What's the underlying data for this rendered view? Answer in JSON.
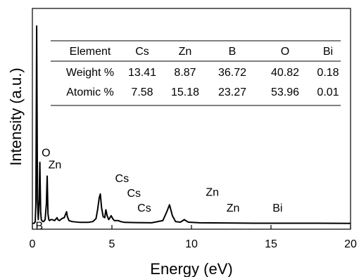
{
  "chart_data": {
    "type": "line",
    "xlabel": "Energy (eV)",
    "ylabel": "Intensity (a.u.)",
    "xlim": [
      0,
      20
    ],
    "x_ticks": [
      "0",
      "5",
      "10",
      "15",
      "20"
    ],
    "grid": false,
    "legend": "none",
    "line_color": "#000000",
    "series": [
      {
        "x": [
          0.0,
          0.12,
          0.18,
          0.22,
          0.27,
          0.32,
          0.37,
          0.42,
          0.47,
          0.52,
          0.56,
          0.62,
          0.7,
          0.8,
          0.88,
          0.93,
          0.98,
          1.03,
          1.08,
          1.15,
          1.25,
          1.4,
          1.5,
          1.55,
          1.6,
          1.7,
          1.85,
          2.0,
          2.1,
          2.15,
          2.2,
          2.3,
          2.5,
          3.0,
          3.5,
          3.8,
          4.0,
          4.1,
          4.2,
          4.27,
          4.35,
          4.45,
          4.55,
          4.62,
          4.7,
          4.8,
          4.88,
          4.95,
          5.05,
          5.15,
          5.3,
          5.4,
          5.55,
          5.8,
          6.5,
          7.5,
          8.2,
          8.45,
          8.62,
          8.8,
          9.0,
          9.3,
          9.55,
          9.8,
          10.5,
          12.0,
          14.0,
          16.0,
          18.0,
          20.0
        ],
        "y": [
          0,
          0.2,
          1,
          10,
          100,
          12,
          2,
          10,
          31,
          6,
          2,
          1.2,
          1,
          2,
          10,
          24,
          5,
          2,
          1.5,
          2,
          2,
          1.5,
          2.5,
          3,
          2,
          1.5,
          2.5,
          3,
          5,
          6,
          3.5,
          1.5,
          1,
          0.6,
          0.6,
          1,
          2.5,
          7,
          13,
          15,
          8,
          3.5,
          3,
          7,
          4,
          2,
          3,
          4,
          2.5,
          1.5,
          1.5,
          1.5,
          1,
          0.6,
          0.5,
          0.4,
          1.5,
          6,
          9.5,
          4,
          1,
          0.7,
          2,
          0.7,
          0.4,
          0.3,
          0.2,
          0.2,
          0.2,
          0.1
        ]
      }
    ],
    "annotations": [
      {
        "text": "O",
        "x": 0.58,
        "y": 34
      },
      {
        "text": "Zn",
        "x": 1.0,
        "y": 28
      },
      {
        "text": "Cs",
        "x": 5.2,
        "y": 21
      },
      {
        "text": "Cs",
        "x": 5.95,
        "y": 13.5
      },
      {
        "text": "Cs",
        "x": 6.6,
        "y": 6
      },
      {
        "text": "Zn",
        "x": 10.9,
        "y": 14
      },
      {
        "text": "Zn",
        "x": 12.2,
        "y": 6
      },
      {
        "text": "Bi",
        "x": 15.1,
        "y": 6
      },
      {
        "text": "B",
        "x": 0.2,
        "y": -3
      }
    ],
    "table": {
      "headers": [
        "Element",
        "Cs",
        "Zn",
        "B",
        "O",
        "Bi"
      ],
      "rows": [
        [
          "Weight %",
          "13.41",
          "8.87",
          "36.72",
          "40.82",
          "0.18"
        ],
        [
          "Atomic %",
          "7.58",
          "15.18",
          "23.27",
          "53.96",
          "0.01"
        ]
      ]
    }
  }
}
